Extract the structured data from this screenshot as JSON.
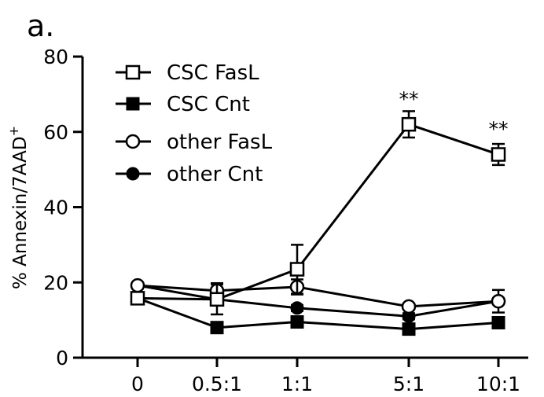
{
  "panel_label": "a.",
  "chart_data": {
    "type": "line",
    "categories": [
      "0",
      "0.5:1",
      "1:1",
      "5:1",
      "10:1"
    ],
    "ylabel": "% Annexin/7AAD",
    "ylabel_sup": "+",
    "xlabel": "",
    "ylim": [
      0,
      80
    ],
    "yticks": [
      "0",
      "20",
      "40",
      "60",
      "80"
    ],
    "grid": false,
    "legend_position": "top-left",
    "series": [
      {
        "name": "CSC FasL",
        "marker": "open-square",
        "values": [
          15.8,
          15.5,
          23.5,
          62.0,
          54.0
        ],
        "errors": [
          1.0,
          4.0,
          6.5,
          3.5,
          2.8
        ]
      },
      {
        "name": "CSC Cnt",
        "marker": "filled-square",
        "values": [
          15.8,
          8.0,
          9.5,
          7.6,
          9.3
        ],
        "errors": [
          0.8,
          0.8,
          0.8,
          0.8,
          0.8
        ]
      },
      {
        "name": "other FasL",
        "marker": "open-circle",
        "values": [
          19.2,
          17.8,
          18.8,
          13.6,
          15.0
        ],
        "errors": [
          0.8,
          2.0,
          2.0,
          0.8,
          3.0
        ]
      },
      {
        "name": "other Cnt",
        "marker": "filled-circle",
        "values": [
          19.2,
          15.5,
          13.2,
          11.0,
          15.0
        ],
        "errors": [
          0.8,
          0.8,
          0.8,
          0.8,
          0.8
        ]
      }
    ],
    "annotations": [
      {
        "text": "**",
        "category": "5:1",
        "y": 69.5
      },
      {
        "text": "**",
        "category": "10:1",
        "y": 61.5
      }
    ],
    "colors": {
      "line": "#000000",
      "background": "#ffffff"
    }
  }
}
